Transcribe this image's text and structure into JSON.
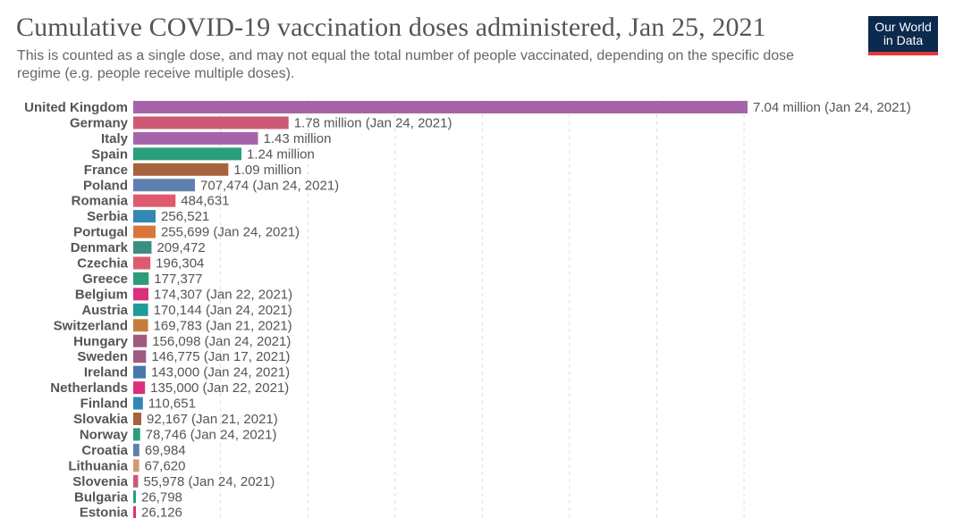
{
  "logo": {
    "line1": "Our World",
    "line2": "in Data"
  },
  "chart_data": {
    "type": "bar",
    "orientation": "horizontal",
    "title": "Cumulative COVID-19 vaccination doses administered, Jan 25, 2021",
    "subtitle": "This is counted as a single dose, and may not equal the total number of people vaccinated, depending on the specific dose regime (e.g. people receive multiple doses).",
    "xlim": [
      0,
      7040000
    ],
    "grid": true,
    "categories": [
      "United Kingdom",
      "Germany",
      "Italy",
      "Spain",
      "France",
      "Poland",
      "Romania",
      "Serbia",
      "Portugal",
      "Denmark",
      "Czechia",
      "Greece",
      "Belgium",
      "Austria",
      "Switzerland",
      "Hungary",
      "Sweden",
      "Ireland",
      "Netherlands",
      "Finland",
      "Slovakia",
      "Norway",
      "Croatia",
      "Lithuania",
      "Slovenia",
      "Bulgaria",
      "Estonia"
    ],
    "values": [
      7040000,
      1780000,
      1430000,
      1240000,
      1090000,
      707474,
      484631,
      256521,
      255699,
      209472,
      196304,
      177377,
      174307,
      170144,
      169783,
      156098,
      146775,
      143000,
      135000,
      110651,
      92167,
      78746,
      69984,
      67620,
      55978,
      26798,
      26126
    ],
    "labels": [
      "7.04 million (Jan 24, 2021)",
      "1.78 million (Jan 24, 2021)",
      "1.43 million",
      "1.24 million",
      "1.09 million",
      "707,474 (Jan 24, 2021)",
      "484,631",
      "256,521",
      "255,699 (Jan 24, 2021)",
      "209,472",
      "196,304",
      "177,377",
      "174,307 (Jan 22, 2021)",
      "170,144 (Jan 24, 2021)",
      "169,783 (Jan 21, 2021)",
      "156,098 (Jan 24, 2021)",
      "146,775 (Jan 17, 2021)",
      "143,000 (Jan 24, 2021)",
      "135,000 (Jan 22, 2021)",
      "110,651",
      "92,167 (Jan 21, 2021)",
      "78,746 (Jan 24, 2021)",
      "69,984",
      "67,620",
      "55,978 (Jan 24, 2021)",
      "26,798",
      "26,126"
    ],
    "colors": [
      "#a763a9",
      "#cd5975",
      "#a763a9",
      "#2a9d7b",
      "#a8623e",
      "#5f7fae",
      "#e05a6d",
      "#3288b4",
      "#d9773a",
      "#3c8e84",
      "#e05a6d",
      "#2a9d7b",
      "#d9307c",
      "#1f9a9a",
      "#c57d3c",
      "#a05a80",
      "#a05a80",
      "#4877a8",
      "#d9307c",
      "#3288b4",
      "#a8623e",
      "#2a9d7b",
      "#5f7fae",
      "#d19a6e",
      "#cd5975",
      "#2a9d7b",
      "#d9307c"
    ]
  }
}
